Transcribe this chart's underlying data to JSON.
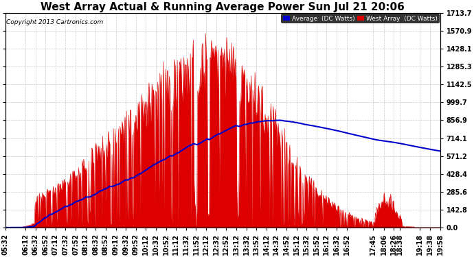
{
  "title": "West Array Actual & Running Average Power Sun Jul 21 20:06",
  "copyright": "Copyright 2013 Cartronics.com",
  "legend_avg": "Average  (DC Watts)",
  "legend_west": "West Array  (DC Watts)",
  "yticks": [
    0.0,
    142.8,
    285.6,
    428.4,
    571.2,
    714.1,
    856.9,
    999.7,
    1142.5,
    1285.3,
    1428.1,
    1570.9,
    1713.7
  ],
  "ymax": 1713.7,
  "background_color": "#ffffff",
  "plot_bg_color": "#ffffff",
  "bar_color": "#dd0000",
  "avg_color": "#0000cc",
  "grid_color": "#bbbbbb",
  "title_fontsize": 11,
  "tick_fontsize": 7,
  "x_tick_labels": [
    "05:32",
    "06:12",
    "06:32",
    "06:52",
    "07:12",
    "07:32",
    "07:52",
    "08:12",
    "08:32",
    "08:52",
    "09:12",
    "09:32",
    "09:52",
    "10:12",
    "10:32",
    "10:52",
    "11:12",
    "11:32",
    "11:52",
    "12:12",
    "12:32",
    "12:52",
    "13:12",
    "13:32",
    "13:52",
    "14:12",
    "14:32",
    "14:52",
    "15:12",
    "15:32",
    "15:52",
    "16:12",
    "16:32",
    "16:52",
    "17:45",
    "18:06",
    "18:26",
    "18:38",
    "19:18",
    "19:38",
    "19:58"
  ]
}
